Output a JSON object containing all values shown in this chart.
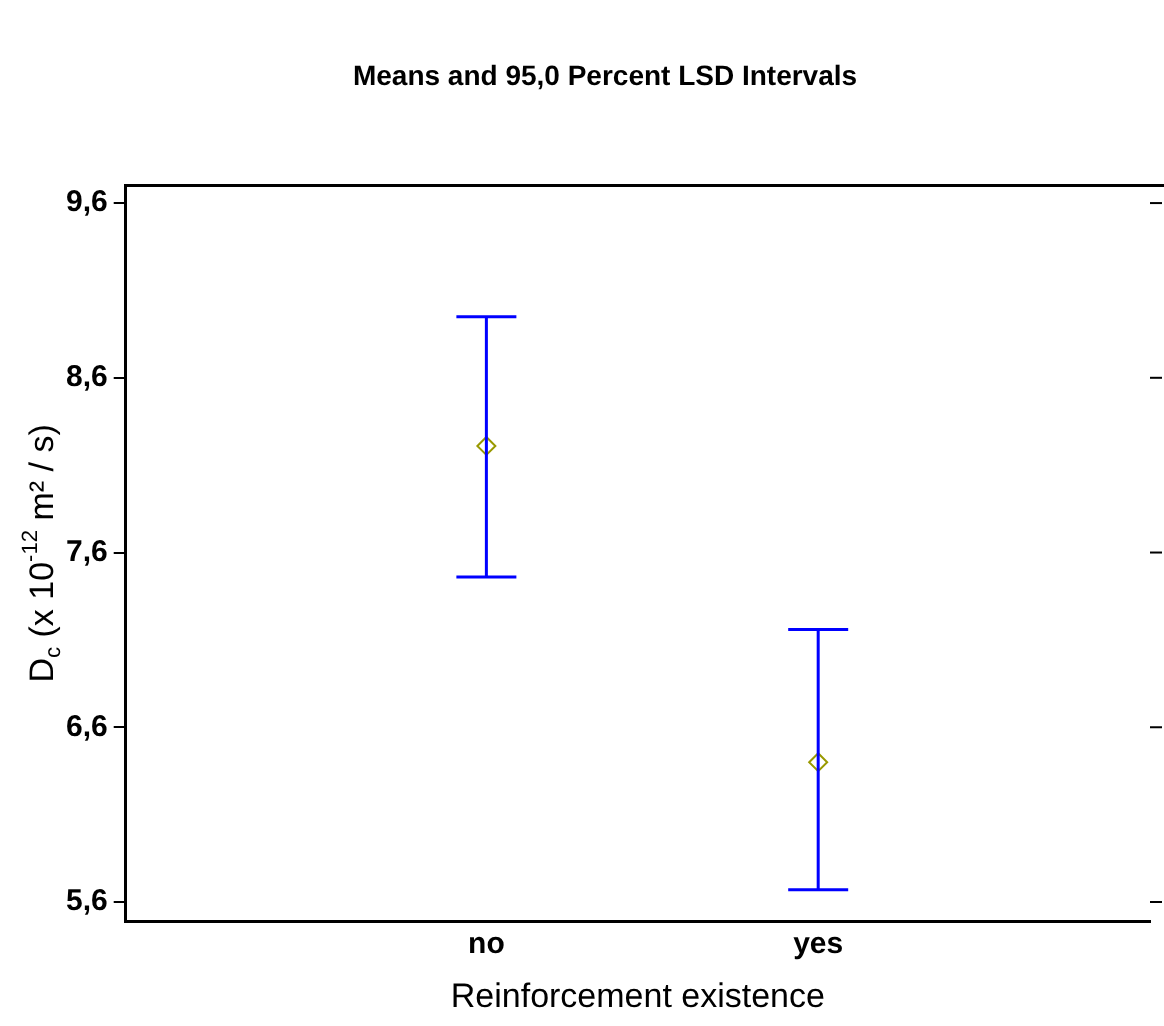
{
  "chart_data": {
    "type": "scatter",
    "title": "Means and 95,0 Percent LSD Intervals",
    "xlabel": "Reinforcement existence",
    "ylabel": "D$_{c}$ (x 10$^{-12}$ m² / s)",
    "categories": [
      "no",
      "yes"
    ],
    "series": [
      {
        "color": "#999900",
        "values": [
          8.21,
          6.4
        ],
        "errors": [
          [
            7.46,
            8.95
          ],
          [
            5.67,
            7.16
          ]
        ]
      }
    ],
    "ylim": [
      5.49,
      9.7
    ],
    "yticks": [
      {
        "value": 5.6,
        "label": "5,6"
      },
      {
        "value": 6.6,
        "label": "6,6"
      },
      {
        "value": 7.6,
        "label": "7,6"
      },
      {
        "value": 8.6,
        "label": "8,6"
      },
      {
        "value": 9.6,
        "label": "9,6"
      }
    ],
    "grid": false,
    "legend": false,
    "marker": "diamond"
  }
}
